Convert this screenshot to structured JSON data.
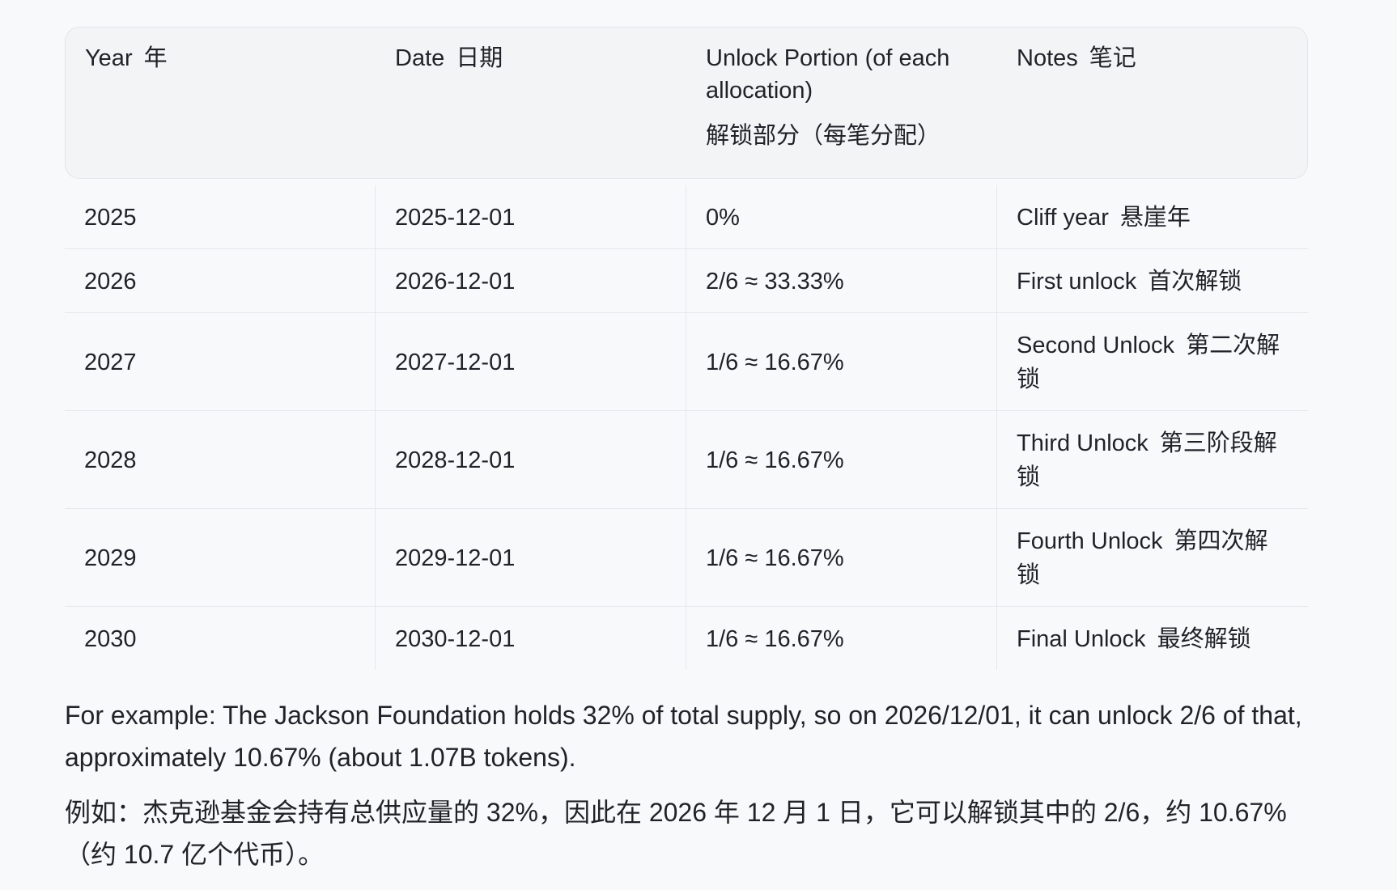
{
  "table": {
    "headers": [
      {
        "en": "Year",
        "zh": "年"
      },
      {
        "en": "Date",
        "zh": "日期"
      },
      {
        "en": "Unlock Portion (of each allocation)",
        "zh": "解锁部分（每笔分配）"
      },
      {
        "en": "Notes",
        "zh": "笔记"
      }
    ],
    "rows": [
      {
        "year": "2025",
        "date": "2025-12-01",
        "portion": "0%",
        "note_en": "Cliff year",
        "note_zh": "悬崖年"
      },
      {
        "year": "2026",
        "date": "2026-12-01",
        "portion": "2/6 ≈ 33.33%",
        "note_en": "First unlock",
        "note_zh": "首次解锁"
      },
      {
        "year": "2027",
        "date": "2027-12-01",
        "portion": "1/6 ≈ 16.67%",
        "note_en": "Second Unlock",
        "note_zh": "第二次解锁"
      },
      {
        "year": "2028",
        "date": "2028-12-01",
        "portion": "1/6 ≈ 16.67%",
        "note_en": "Third Unlock",
        "note_zh": "第三阶段解锁"
      },
      {
        "year": "2029",
        "date": "2029-12-01",
        "portion": "1/6 ≈ 16.67%",
        "note_en": "Fourth Unlock",
        "note_zh": "第四次解锁"
      },
      {
        "year": "2030",
        "date": "2030-12-01",
        "portion": "1/6 ≈ 16.67%",
        "note_en": "Final Unlock",
        "note_zh": "最终解锁"
      }
    ]
  },
  "example": {
    "en": "For example: The Jackson Foundation holds 32% of total supply, so on 2026/12/01, it can unlock 2/6 of that, approximately 10.67% (about 1.07B tokens).",
    "zh": "例如：杰克逊基金会持有总供应量的 32%，因此在 2026 年 12 月 1 日，它可以解锁其中的 2/6，约 10.67%（约 10.7 亿个代币）。"
  }
}
